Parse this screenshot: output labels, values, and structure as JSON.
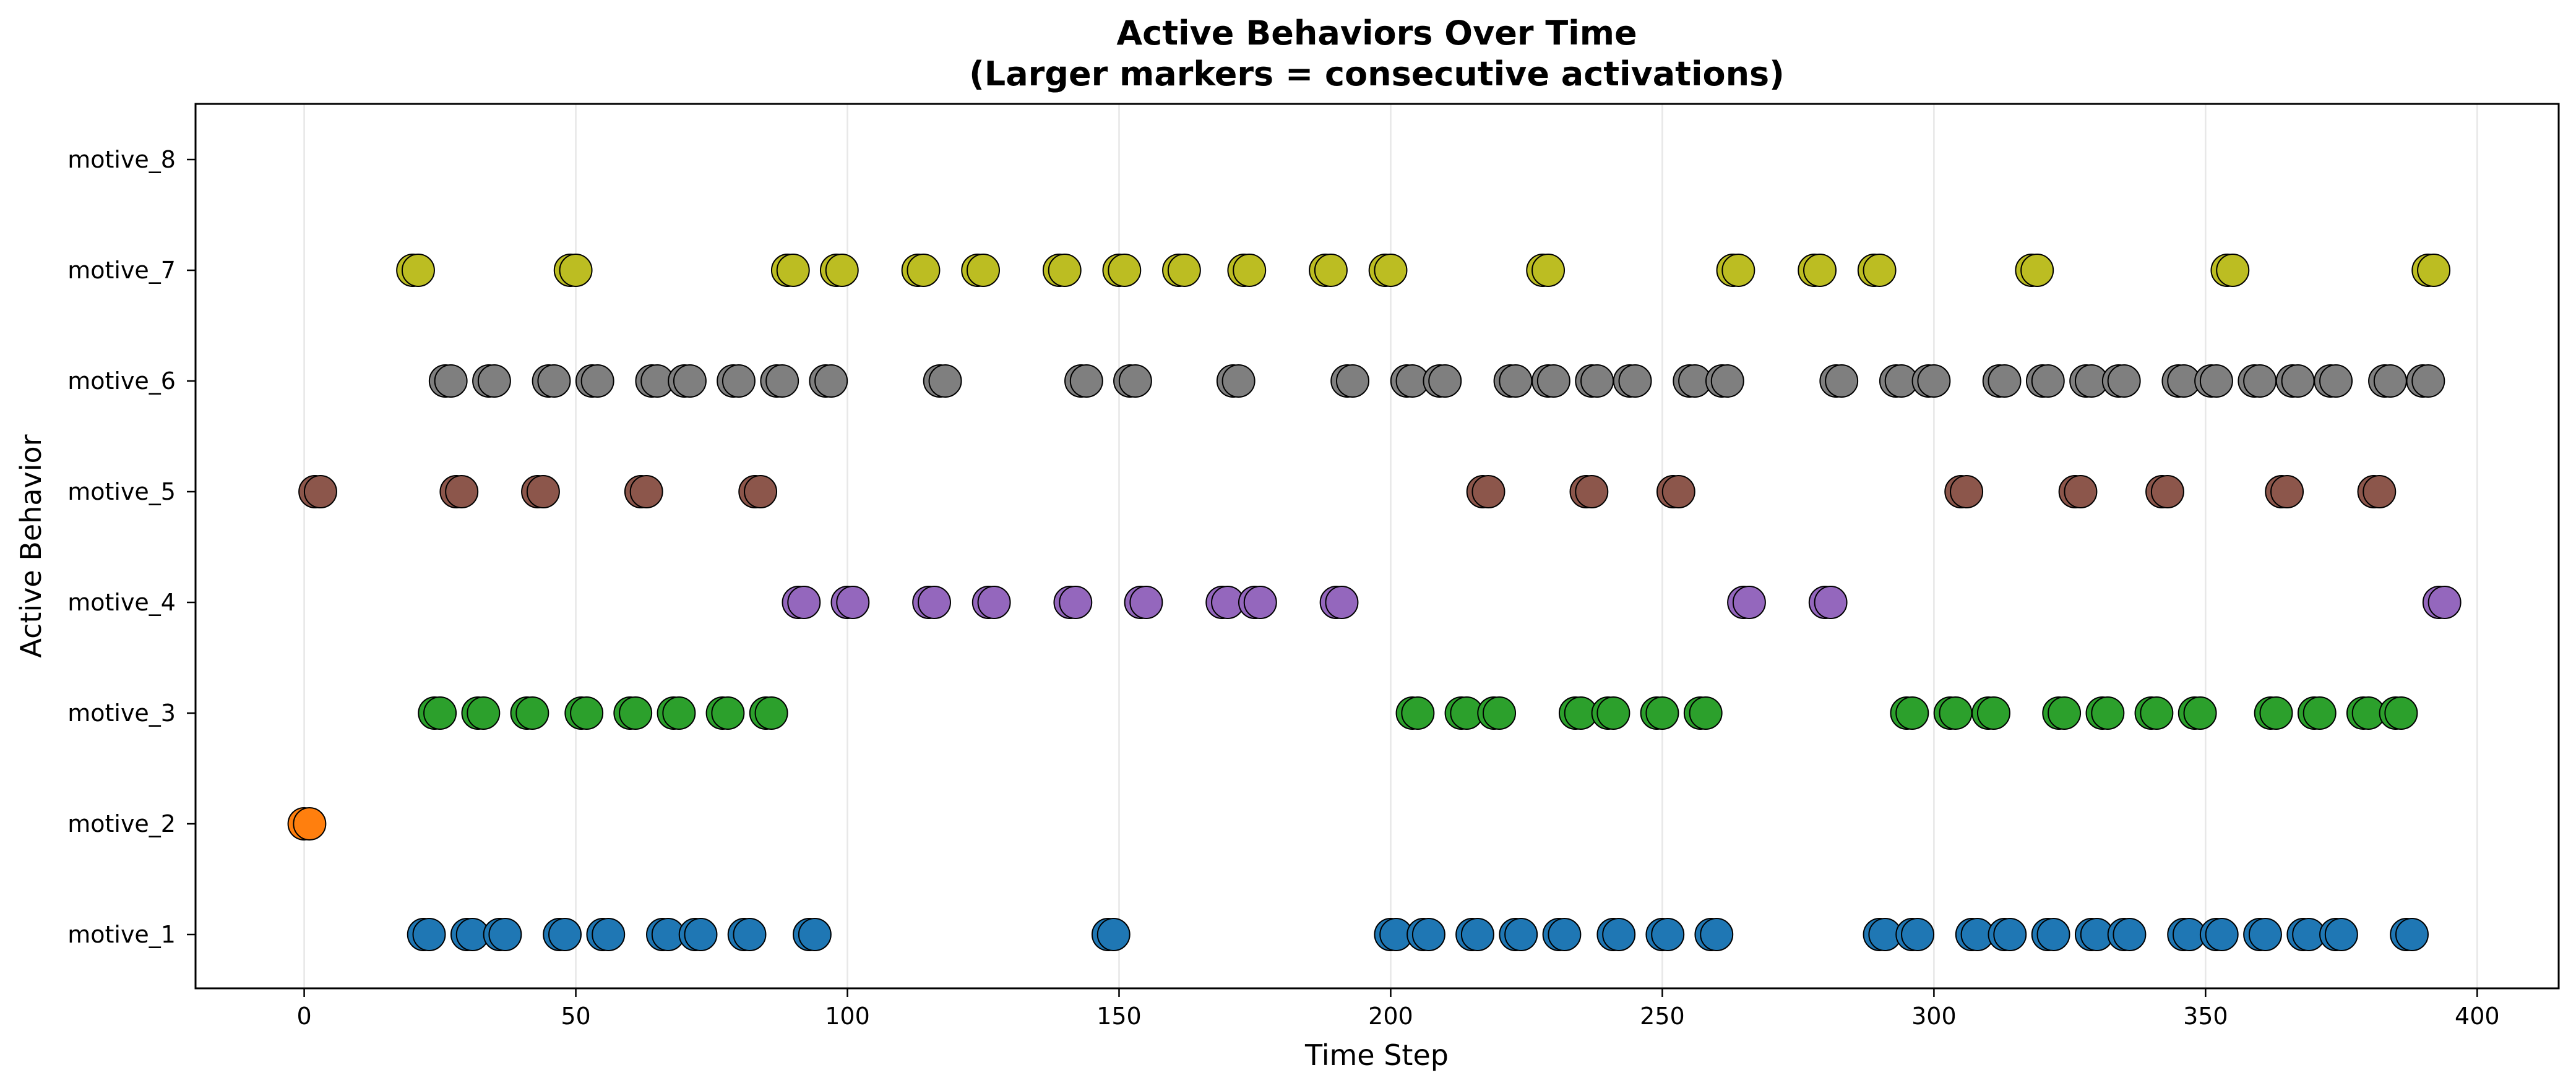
{
  "chart_data": {
    "type": "scatter",
    "title": "Active Behaviors Over Time",
    "subtitle": "(Larger markers = consecutive activations)",
    "xlabel": "Time Step",
    "ylabel": "Active Behavior",
    "xlim": [
      -20,
      415
    ],
    "x_ticks": [
      0,
      50,
      100,
      150,
      200,
      250,
      300,
      350,
      400
    ],
    "categories": [
      "motive_1",
      "motive_2",
      "motive_3",
      "motive_4",
      "motive_5",
      "motive_6",
      "motive_7",
      "motive_8"
    ],
    "grid": "vertical",
    "series": [
      {
        "category": "motive_1",
        "color": "#1f77b4",
        "x": [
          22,
          23,
          30,
          31,
          36,
          37,
          47,
          48,
          55,
          56,
          66,
          67,
          72,
          73,
          81,
          82,
          93,
          94,
          148,
          149,
          200,
          201,
          206,
          207,
          215,
          216,
          223,
          224,
          231,
          232,
          241,
          242,
          250,
          251,
          259,
          260,
          290,
          291,
          296,
          297,
          307,
          308,
          313,
          314,
          321,
          322,
          329,
          330,
          335,
          336,
          346,
          347,
          352,
          353,
          360,
          361,
          368,
          369,
          374,
          375,
          387,
          388
        ]
      },
      {
        "category": "motive_2",
        "color": "#ff7f0e",
        "x": [
          0,
          1
        ]
      },
      {
        "category": "motive_3",
        "color": "#2ca02c",
        "x": [
          24,
          25,
          32,
          33,
          41,
          42,
          51,
          52,
          60,
          61,
          68,
          69,
          77,
          78,
          85,
          86,
          204,
          205,
          213,
          214,
          219,
          220,
          234,
          235,
          240,
          241,
          249,
          250,
          257,
          258,
          295,
          296,
          303,
          304,
          310,
          311,
          323,
          324,
          331,
          332,
          340,
          341,
          348,
          349,
          362,
          363,
          370,
          371,
          379,
          380,
          385,
          386
        ]
      },
      {
        "category": "motive_4",
        "color": "#9467bd",
        "x": [
          91,
          92,
          100,
          101,
          115,
          116,
          126,
          127,
          141,
          142,
          154,
          155,
          169,
          170,
          175,
          176,
          190,
          191,
          265,
          266,
          280,
          281,
          393,
          394
        ]
      },
      {
        "category": "motive_5",
        "color": "#8c564b",
        "x": [
          2,
          3,
          28,
          29,
          43,
          44,
          62,
          63,
          83,
          84,
          217,
          218,
          236,
          237,
          252,
          253,
          305,
          306,
          326,
          327,
          342,
          343,
          364,
          365,
          381,
          382
        ]
      },
      {
        "category": "motive_6",
        "color": "#7f7f7f",
        "x": [
          26,
          27,
          34,
          35,
          45,
          46,
          53,
          54,
          64,
          65,
          70,
          71,
          79,
          80,
          87,
          88,
          96,
          97,
          117,
          118,
          143,
          144,
          152,
          153,
          171,
          172,
          192,
          193,
          203,
          204,
          209,
          210,
          222,
          223,
          229,
          230,
          237,
          238,
          244,
          245,
          255,
          256,
          261,
          262,
          282,
          283,
          293,
          294,
          299,
          300,
          312,
          313,
          320,
          321,
          328,
          329,
          334,
          335,
          345,
          346,
          351,
          352,
          359,
          360,
          366,
          367,
          373,
          374,
          383,
          384,
          390,
          391
        ]
      },
      {
        "category": "motive_7",
        "color": "#bcbd22",
        "x": [
          20,
          21,
          49,
          50,
          89,
          90,
          98,
          99,
          113,
          114,
          124,
          125,
          139,
          140,
          150,
          151,
          161,
          162,
          173,
          174,
          188,
          189,
          199,
          200,
          228,
          229,
          263,
          264,
          278,
          279,
          289,
          290,
          318,
          319,
          354,
          355,
          391,
          392
        ]
      },
      {
        "category": "motive_8",
        "color": "#17becf",
        "x": []
      }
    ]
  }
}
